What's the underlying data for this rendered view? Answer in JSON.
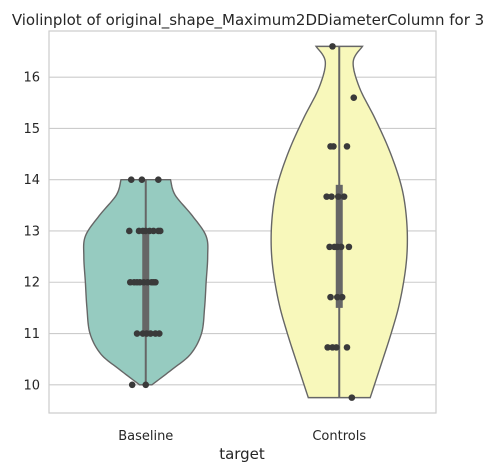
{
  "chart_data": {
    "type": "violin",
    "title": "Violinplot of original_shape_Maximum2DDiameterColumn for 3",
    "xlabel": "target",
    "ylabel": "",
    "ylim": [
      9.45,
      16.9
    ],
    "yticks": [
      10,
      11,
      12,
      13,
      14,
      15,
      16
    ],
    "grid": "horizontal",
    "categories": [
      "Baseline",
      "Controls"
    ],
    "colors": {
      "Baseline": "#96cbc0",
      "Controls": "#f8f8bb",
      "outline": "#666666",
      "points": "#3a3a3a",
      "grid": "#cccccc",
      "frame": "#cccccc"
    },
    "series": [
      {
        "category": "Baseline",
        "range": [
          10.0,
          14.0
        ],
        "quartiles": [
          11.0,
          12.0,
          13.0
        ],
        "median": 12.0,
        "points": [
          14.0,
          14.0,
          14.0,
          13.0,
          13.0,
          13.0,
          13.0,
          13.0,
          13.0,
          13.0,
          13.0,
          12.0,
          12.0,
          12.0,
          12.0,
          12.0,
          12.0,
          12.0,
          12.0,
          12.0,
          11.0,
          11.0,
          11.0,
          11.0,
          11.0,
          11.0,
          10.0,
          10.0
        ],
        "jitter": [
          -0.15,
          -0.04,
          0.13,
          -0.17,
          -0.07,
          -0.03,
          0.0,
          0.04,
          0.08,
          0.13,
          0.15,
          -0.16,
          -0.12,
          -0.09,
          -0.06,
          -0.02,
          0.02,
          0.06,
          0.08,
          0.1,
          -0.09,
          -0.03,
          0.01,
          0.05,
          0.1,
          0.14,
          -0.14,
          0.0
        ],
        "density": [
          [
            10.0,
            0.08
          ],
          [
            10.3,
            0.34
          ],
          [
            10.6,
            0.58
          ],
          [
            11.0,
            0.72
          ],
          [
            11.5,
            0.76
          ],
          [
            12.0,
            0.78
          ],
          [
            12.5,
            0.8
          ],
          [
            12.9,
            0.78
          ],
          [
            13.3,
            0.6
          ],
          [
            13.7,
            0.38
          ],
          [
            14.0,
            0.32
          ]
        ]
      },
      {
        "category": "Controls",
        "range": [
          9.75,
          16.6
        ],
        "quartiles": [
          11.5,
          12.7,
          13.9
        ],
        "median": 12.7,
        "points": [
          16.6,
          15.6,
          14.65,
          14.65,
          14.65,
          13.67,
          13.67,
          13.67,
          13.67,
          12.69,
          12.69,
          12.69,
          12.69,
          12.69,
          11.71,
          11.71,
          11.71,
          10.73,
          10.73,
          10.73,
          10.73,
          9.75
        ],
        "jitter": [
          -0.07,
          0.15,
          -0.09,
          -0.06,
          0.08,
          -0.13,
          -0.08,
          -0.01,
          0.05,
          -0.1,
          -0.05,
          -0.02,
          0.02,
          0.1,
          -0.09,
          -0.02,
          0.03,
          -0.12,
          -0.07,
          -0.03,
          0.08,
          0.13
        ],
        "density": [
          [
            9.75,
            0.4
          ],
          [
            10.3,
            0.52
          ],
          [
            11.0,
            0.67
          ],
          [
            11.6,
            0.78
          ],
          [
            12.3,
            0.86
          ],
          [
            12.9,
            0.88
          ],
          [
            13.5,
            0.85
          ],
          [
            14.0,
            0.78
          ],
          [
            14.6,
            0.64
          ],
          [
            15.2,
            0.46
          ],
          [
            15.8,
            0.26
          ],
          [
            16.3,
            0.18
          ],
          [
            16.6,
            0.3
          ]
        ]
      }
    ]
  }
}
